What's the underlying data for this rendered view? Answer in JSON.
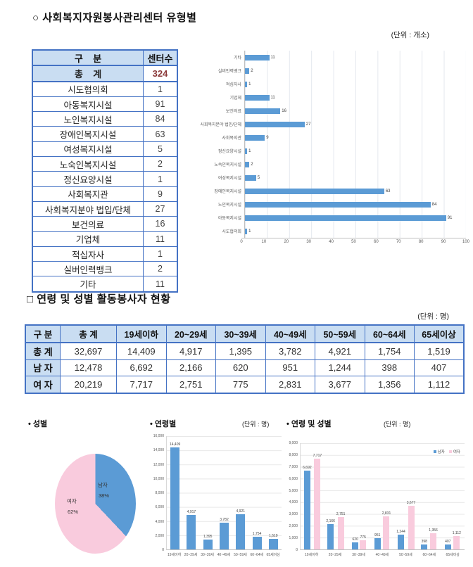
{
  "page": {
    "section1": {
      "title": "○ 사회복지자원봉사관리센터 유형별",
      "unit": "(단위 : 개소)"
    },
    "section2": {
      "title": "□ 연령 및 성별 활동봉사자 현황",
      "unit": "(단위 : 명)"
    },
    "bottom": {
      "pie_label": "• 성별",
      "age_label": "• 연령별",
      "age_unit": "(단위 : 명)",
      "agegender_label": "• 연령 및 성별",
      "agegender_unit": "(단위 : 명)"
    }
  },
  "colors": {
    "bar_blue": "#5B9BD5",
    "pie_pink": "#F9CBDD",
    "table_border": "#4472C4",
    "table_header_bg": "#C9DDF2",
    "total_value_color": "#8B3A3A"
  },
  "table1": {
    "headers": [
      "구    분",
      "센터수"
    ],
    "total_row": {
      "label": "총    계",
      "value": "324"
    },
    "rows": [
      [
        "시도협의회",
        "1"
      ],
      [
        "아동복지시설",
        "91"
      ],
      [
        "노인복지시설",
        "84"
      ],
      [
        "장애인복지시설",
        "63"
      ],
      [
        "여성복지시설",
        "5"
      ],
      [
        "노숙인복지시설",
        "2"
      ],
      [
        "정신요양시설",
        "1"
      ],
      [
        "사회복지관",
        "9"
      ],
      [
        "사회복지분야 법입/단체",
        "27"
      ],
      [
        "보건의료",
        "16"
      ],
      [
        "기업체",
        "11"
      ],
      [
        "적십자사",
        "1"
      ],
      [
        "실버인력뱅크",
        "2"
      ],
      [
        "기타",
        "11"
      ]
    ]
  },
  "table2": {
    "headers": [
      "구 분",
      "총 계",
      "19세이하",
      "20~29세",
      "30~39세",
      "40~49세",
      "50~59세",
      "60~64세",
      "65세이상"
    ],
    "rows": [
      {
        "label": "총 계",
        "values": [
          "32,697",
          "14,409",
          "4,917",
          "1,395",
          "3,782",
          "4,921",
          "1,754",
          "1,519"
        ]
      },
      {
        "label": "남 자",
        "values": [
          "12,478",
          "6,692",
          "2,166",
          "620",
          "951",
          "1,244",
          "398",
          "407"
        ]
      },
      {
        "label": "여 자",
        "values": [
          "20,219",
          "7,717",
          "2,751",
          "775",
          "2,831",
          "3,677",
          "1,356",
          "1,112"
        ]
      }
    ]
  },
  "chart_data": [
    {
      "type": "bar",
      "orientation": "horizontal",
      "title": "사회복지자원봉사관리센터 유형별",
      "categories": [
        "기타",
        "실버인력뱅크",
        "적십자사",
        "기업체",
        "보건의료",
        "사회복지분야 법인/단체",
        "사회복지관",
        "정신요양시설",
        "노숙인복지시설",
        "여성복지시설",
        "장애인복지시설",
        "노인복지시설",
        "아동복지시설",
        "시도협의회"
      ],
      "values": [
        11,
        2,
        1,
        11,
        16,
        27,
        9,
        1,
        2,
        5,
        63,
        84,
        91,
        1
      ],
      "xlim": [
        0,
        100
      ],
      "xticks": [
        0,
        10,
        20,
        30,
        40,
        50,
        60,
        70,
        80,
        90,
        100
      ],
      "bar_color": "#5B9BD5",
      "grid": true
    },
    {
      "type": "pie",
      "title": "성별",
      "labels": [
        "남자",
        "여자"
      ],
      "values_pct": [
        38,
        62
      ],
      "pct_labels": [
        "38%",
        "62%"
      ],
      "colors": [
        "#5B9BD5",
        "#F9CBDD"
      ]
    },
    {
      "type": "bar",
      "title": "연령별",
      "categories": [
        "19세이하",
        "20~29세",
        "30~39세",
        "40~49세",
        "50~59세",
        "60~64세",
        "65세이상"
      ],
      "values": [
        14409,
        4917,
        1395,
        3782,
        4921,
        1754,
        1519
      ],
      "ylim": [
        0,
        16000
      ],
      "ytick_step": 2000,
      "bar_color": "#5B9BD5",
      "grid": true
    },
    {
      "type": "bar",
      "title": "연령 및 성별",
      "categories": [
        "19세이하",
        "20~29세",
        "30~39세",
        "40~49세",
        "50~59세",
        "60~64세",
        "65세이상"
      ],
      "series": [
        {
          "name": "남자",
          "color": "#5B9BD5",
          "values": [
            6692,
            2166,
            620,
            951,
            1244,
            398,
            407
          ]
        },
        {
          "name": "여자",
          "color": "#F9CBDD",
          "values": [
            7717,
            2751,
            775,
            2831,
            3677,
            1356,
            1112
          ]
        }
      ],
      "ylim": [
        0,
        9000
      ],
      "ytick_step": 1000,
      "legend_position": "top-right",
      "grid": true
    }
  ]
}
